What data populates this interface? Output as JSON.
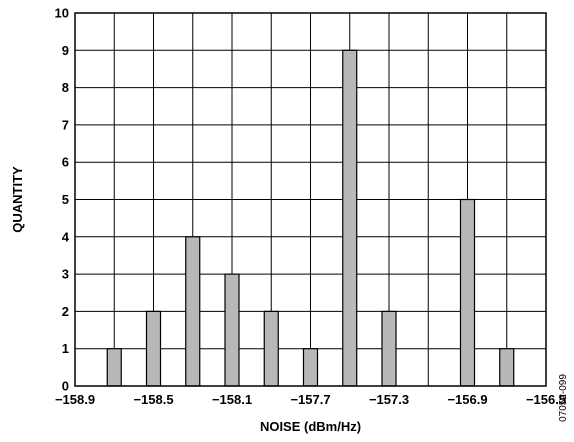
{
  "chart_data": {
    "type": "bar",
    "xlabel": "NOISE (dBm/Hz)",
    "ylabel": "QUANTITY",
    "x_ticks": [
      "−158.9",
      "−158.5",
      "−158.1",
      "−157.7",
      "−157.3",
      "−156.9",
      "−156.5"
    ],
    "x_tick_values": [
      -158.9,
      -158.5,
      -158.1,
      -157.7,
      -157.3,
      -156.9,
      -156.5
    ],
    "xlim": [
      -158.9,
      -156.5
    ],
    "ylim": [
      0,
      10
    ],
    "y_ticks": [
      "0",
      "1",
      "2",
      "3",
      "4",
      "5",
      "6",
      "7",
      "8",
      "9",
      "10"
    ],
    "bars": [
      {
        "x": -158.7,
        "value": 1
      },
      {
        "x": -158.5,
        "value": 2
      },
      {
        "x": -158.3,
        "value": 4
      },
      {
        "x": -158.1,
        "value": 3
      },
      {
        "x": -157.9,
        "value": 2
      },
      {
        "x": -157.7,
        "value": 1
      },
      {
        "x": -157.5,
        "value": 9
      },
      {
        "x": -157.3,
        "value": 2
      },
      {
        "x": -156.9,
        "value": 5
      },
      {
        "x": -156.7,
        "value": 1
      }
    ],
    "grid": true,
    "bar_color": "#b8b8b8",
    "bar_edge_color": "#000000"
  },
  "figure_id": "07052-099"
}
